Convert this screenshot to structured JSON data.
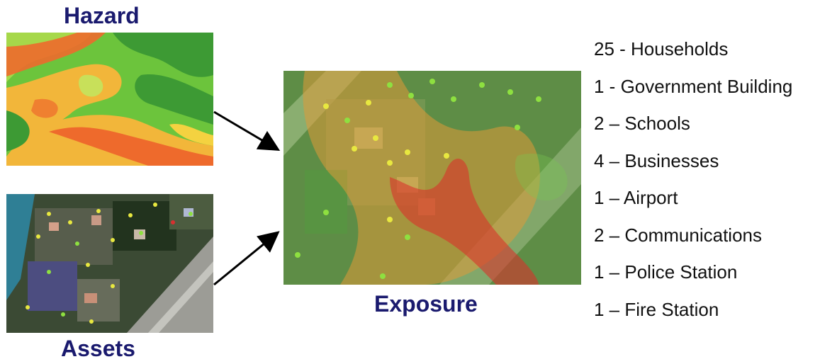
{
  "labels": {
    "hazard": "Hazard",
    "assets": "Assets",
    "exposure": "Exposure"
  },
  "exposure_list": [
    "25 -  Households",
    "1 - Government Building",
    "2 – Schools",
    "4 – Businesses",
    "1 – Airport",
    "2 – Communications",
    "1 – Police Station",
    "1 – Fire Station"
  ],
  "colors": {
    "title": "#1a1a6e",
    "arrow": "#000000",
    "hazard_low": "#6cc43c",
    "hazard_mid": "#f2b63a",
    "hazard_high": "#ee6a2c",
    "exposure_zone_high": "#d9322c",
    "exposure_zone_mid": "#e09a38",
    "exposure_zone_low": "#78c850"
  }
}
